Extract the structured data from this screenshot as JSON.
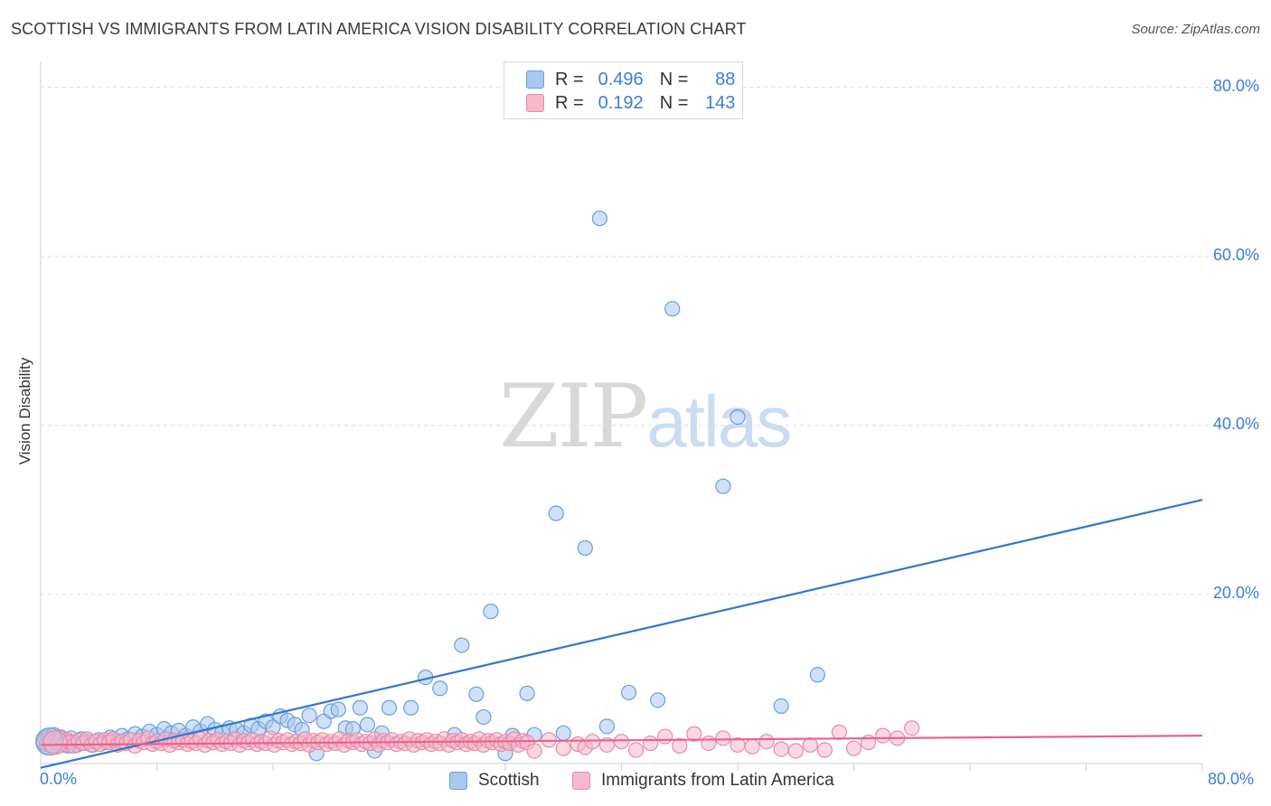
{
  "header": {
    "title": "SCOTTISH VS IMMIGRANTS FROM LATIN AMERICA VISION DISABILITY CORRELATION CHART",
    "source": "Source: ZipAtlas.com"
  },
  "watermark": {
    "zip": "ZIP",
    "atlas": "atlas"
  },
  "legend": {
    "rows": [
      {
        "r_label": "R =",
        "r_value": "0.496",
        "n_label": "N =",
        "n_value": "88"
      },
      {
        "r_label": "R =",
        "r_value": "0.192",
        "n_label": "N =",
        "n_value": "143"
      }
    ]
  },
  "colors": {
    "scottish_fill": "#a9c8ef",
    "scottish_stroke": "#6a9fdd",
    "scottish_line": "#2f76d2",
    "latin_fill": "#f6b8cb",
    "latin_stroke": "#e98aa8",
    "latin_line": "#e8638d",
    "tick_text": "#3c7dd9",
    "grid": "#dcdcdc"
  },
  "chart_data": {
    "type": "scatter",
    "title": "SCOTTISH VS IMMIGRANTS FROM LATIN AMERICA VISION DISABILITY CORRELATION CHART",
    "xlabel": "",
    "ylabel": "Vision Disability",
    "xlim": [
      0,
      80
    ],
    "ylim": [
      0,
      82
    ],
    "x_tick_labels": [
      "0.0%",
      "80.0%"
    ],
    "y_tick_values": [
      20,
      40,
      60,
      80
    ],
    "y_tick_labels": [
      "20.0%",
      "40.0%",
      "60.0%",
      "80.0%"
    ],
    "grid": true,
    "legend_position": "bottom",
    "series": [
      {
        "name": "Scottish",
        "r": 0.496,
        "n": 88,
        "trend": {
          "x": [
            0,
            80
          ],
          "y": [
            -0.5,
            31.2
          ]
        },
        "points": [
          [
            0.2,
            2.5
          ],
          [
            0.3,
            3.0
          ],
          [
            0.4,
            2.0
          ],
          [
            0.5,
            3.2
          ],
          [
            0.6,
            2.6
          ],
          [
            0.7,
            2.2
          ],
          [
            0.8,
            2.9
          ],
          [
            0.9,
            3.4
          ],
          [
            1.0,
            2.4
          ],
          [
            1.1,
            2.0
          ],
          [
            1.2,
            2.8
          ],
          [
            1.4,
            3.1
          ],
          [
            1.5,
            2.3
          ],
          [
            1.7,
            2.7
          ],
          [
            1.9,
            2.1
          ],
          [
            2.1,
            3.0
          ],
          [
            2.3,
            2.5
          ],
          [
            2.5,
            2.2
          ],
          [
            2.8,
            2.9
          ],
          [
            3.0,
            2.4
          ],
          [
            3.3,
            2.6
          ],
          [
            3.6,
            2.2
          ],
          [
            4.0,
            2.8
          ],
          [
            4.4,
            2.5
          ],
          [
            4.8,
            3.1
          ],
          [
            5.2,
            2.7
          ],
          [
            5.6,
            3.3
          ],
          [
            6.0,
            2.9
          ],
          [
            6.5,
            3.5
          ],
          [
            7.0,
            3.2
          ],
          [
            7.5,
            3.8
          ],
          [
            8.0,
            3.4
          ],
          [
            8.5,
            4.1
          ],
          [
            9.0,
            3.6
          ],
          [
            9.5,
            3.9
          ],
          [
            10.0,
            3.3
          ],
          [
            10.5,
            4.3
          ],
          [
            11.0,
            3.8
          ],
          [
            11.5,
            4.7
          ],
          [
            12.0,
            4.0
          ],
          [
            12.5,
            3.7
          ],
          [
            13.0,
            4.2
          ],
          [
            13.5,
            4.0
          ],
          [
            14.0,
            3.6
          ],
          [
            14.5,
            4.5
          ],
          [
            15.0,
            4.1
          ],
          [
            15.5,
            5.0
          ],
          [
            16.0,
            4.3
          ],
          [
            16.5,
            5.6
          ],
          [
            17.0,
            5.1
          ],
          [
            17.5,
            4.6
          ],
          [
            18.0,
            4.0
          ],
          [
            18.5,
            5.7
          ],
          [
            19.0,
            1.2
          ],
          [
            19.5,
            5.0
          ],
          [
            20.0,
            6.2
          ],
          [
            20.5,
            6.4
          ],
          [
            21.0,
            4.2
          ],
          [
            21.5,
            4.1
          ],
          [
            22.0,
            6.6
          ],
          [
            22.5,
            4.6
          ],
          [
            23.0,
            1.5
          ],
          [
            23.5,
            3.6
          ],
          [
            24.0,
            6.6
          ],
          [
            25.5,
            6.6
          ],
          [
            26.5,
            10.2
          ],
          [
            27.5,
            8.9
          ],
          [
            28.5,
            3.4
          ],
          [
            29.0,
            14.0
          ],
          [
            30.0,
            8.2
          ],
          [
            30.5,
            5.5
          ],
          [
            31.0,
            18.0
          ],
          [
            32.0,
            1.2
          ],
          [
            32.5,
            3.3
          ],
          [
            33.5,
            8.3
          ],
          [
            34.0,
            3.4
          ],
          [
            35.5,
            29.6
          ],
          [
            36.0,
            3.6
          ],
          [
            37.5,
            25.5
          ],
          [
            38.5,
            64.5
          ],
          [
            39.0,
            4.4
          ],
          [
            40.5,
            8.4
          ],
          [
            42.5,
            7.5
          ],
          [
            43.5,
            53.8
          ],
          [
            47.0,
            32.8
          ],
          [
            48.0,
            41.0
          ],
          [
            51.0,
            6.8
          ],
          [
            53.5,
            10.5
          ]
        ]
      },
      {
        "name": "Immigrants from Latin America",
        "r": 0.192,
        "n": 143,
        "trend": {
          "x": [
            0,
            80
          ],
          "y": [
            2.2,
            3.3
          ]
        },
        "points": [
          [
            0.2,
            2.6
          ],
          [
            0.4,
            2.3
          ],
          [
            0.6,
            2.9
          ],
          [
            0.8,
            2.1
          ],
          [
            1.0,
            2.7
          ],
          [
            1.2,
            2.4
          ],
          [
            1.4,
            3.0
          ],
          [
            1.6,
            2.2
          ],
          [
            1.8,
            2.8
          ],
          [
            2.0,
            2.5
          ],
          [
            2.3,
            2.1
          ],
          [
            2.6,
            2.7
          ],
          [
            2.9,
            2.4
          ],
          [
            3.2,
            2.9
          ],
          [
            3.5,
            2.2
          ],
          [
            3.8,
            2.6
          ],
          [
            4.1,
            2.3
          ],
          [
            4.4,
            2.8
          ],
          [
            4.7,
            2.5
          ],
          [
            5.0,
            2.9
          ],
          [
            5.3,
            2.2
          ],
          [
            5.6,
            2.6
          ],
          [
            5.9,
            2.4
          ],
          [
            6.2,
            2.8
          ],
          [
            6.5,
            2.1
          ],
          [
            6.8,
            2.7
          ],
          [
            7.1,
            2.5
          ],
          [
            7.4,
            3.0
          ],
          [
            7.7,
            2.3
          ],
          [
            8.0,
            2.6
          ],
          [
            8.3,
            2.4
          ],
          [
            8.6,
            2.9
          ],
          [
            8.9,
            2.2
          ],
          [
            9.2,
            2.7
          ],
          [
            9.5,
            2.5
          ],
          [
            9.8,
            2.8
          ],
          [
            10.1,
            2.3
          ],
          [
            10.4,
            2.6
          ],
          [
            10.7,
            2.4
          ],
          [
            11.0,
            2.9
          ],
          [
            11.3,
            2.2
          ],
          [
            11.6,
            2.7
          ],
          [
            11.9,
            2.5
          ],
          [
            12.2,
            2.8
          ],
          [
            12.5,
            2.3
          ],
          [
            12.8,
            2.6
          ],
          [
            13.1,
            2.4
          ],
          [
            13.4,
            2.9
          ],
          [
            13.7,
            2.2
          ],
          [
            14.0,
            2.7
          ],
          [
            14.3,
            2.5
          ],
          [
            14.6,
            2.8
          ],
          [
            14.9,
            2.3
          ],
          [
            15.2,
            2.6
          ],
          [
            15.5,
            2.4
          ],
          [
            15.8,
            3.0
          ],
          [
            16.1,
            2.2
          ],
          [
            16.4,
            2.7
          ],
          [
            16.7,
            2.5
          ],
          [
            17.0,
            2.8
          ],
          [
            17.3,
            2.3
          ],
          [
            17.6,
            2.6
          ],
          [
            17.9,
            2.4
          ],
          [
            18.2,
            2.9
          ],
          [
            18.5,
            2.2
          ],
          [
            18.8,
            2.7
          ],
          [
            19.1,
            2.5
          ],
          [
            19.4,
            2.8
          ],
          [
            19.7,
            2.3
          ],
          [
            20.0,
            2.6
          ],
          [
            20.3,
            2.4
          ],
          [
            20.6,
            2.9
          ],
          [
            20.9,
            2.2
          ],
          [
            21.2,
            2.7
          ],
          [
            21.5,
            2.5
          ],
          [
            21.8,
            2.8
          ],
          [
            22.1,
            2.3
          ],
          [
            22.4,
            2.6
          ],
          [
            22.7,
            2.4
          ],
          [
            23.0,
            2.9
          ],
          [
            23.3,
            2.2
          ],
          [
            23.6,
            2.7
          ],
          [
            23.9,
            2.5
          ],
          [
            24.2,
            2.8
          ],
          [
            24.5,
            2.3
          ],
          [
            24.8,
            2.6
          ],
          [
            25.1,
            2.4
          ],
          [
            25.4,
            2.9
          ],
          [
            25.7,
            2.2
          ],
          [
            26.0,
            2.7
          ],
          [
            26.3,
            2.5
          ],
          [
            26.6,
            2.8
          ],
          [
            26.9,
            2.3
          ],
          [
            27.2,
            2.6
          ],
          [
            27.5,
            2.4
          ],
          [
            27.8,
            2.9
          ],
          [
            28.1,
            2.2
          ],
          [
            28.4,
            2.7
          ],
          [
            28.7,
            2.5
          ],
          [
            29.0,
            2.8
          ],
          [
            29.3,
            2.3
          ],
          [
            29.6,
            2.6
          ],
          [
            29.9,
            2.4
          ],
          [
            30.2,
            2.9
          ],
          [
            30.5,
            2.2
          ],
          [
            30.8,
            2.7
          ],
          [
            31.1,
            2.5
          ],
          [
            31.4,
            2.8
          ],
          [
            31.7,
            2.3
          ],
          [
            32.0,
            2.6
          ],
          [
            32.3,
            2.4
          ],
          [
            32.6,
            2.9
          ],
          [
            32.9,
            2.2
          ],
          [
            33.2,
            2.7
          ],
          [
            33.5,
            2.5
          ],
          [
            34.0,
            1.5
          ],
          [
            35.0,
            2.8
          ],
          [
            36.0,
            1.8
          ],
          [
            37.0,
            2.3
          ],
          [
            37.5,
            1.9
          ],
          [
            38.0,
            2.6
          ],
          [
            39.0,
            2.2
          ],
          [
            40.0,
            2.6
          ],
          [
            41.0,
            1.6
          ],
          [
            42.0,
            2.4
          ],
          [
            43.0,
            3.2
          ],
          [
            44.0,
            2.1
          ],
          [
            45.0,
            3.5
          ],
          [
            46.0,
            2.4
          ],
          [
            47.0,
            3.0
          ],
          [
            48.0,
            2.2
          ],
          [
            49.0,
            2.0
          ],
          [
            50.0,
            2.6
          ],
          [
            51.0,
            1.7
          ],
          [
            52.0,
            1.5
          ],
          [
            53.0,
            2.2
          ],
          [
            54.0,
            1.6
          ],
          [
            55.0,
            3.7
          ],
          [
            56.0,
            1.8
          ],
          [
            57.0,
            2.5
          ],
          [
            58.0,
            3.3
          ],
          [
            59.0,
            3.0
          ],
          [
            60.0,
            4.2
          ]
        ]
      }
    ]
  },
  "bottom_legend": {
    "items": [
      "Scottish",
      "Immigrants from Latin America"
    ]
  }
}
